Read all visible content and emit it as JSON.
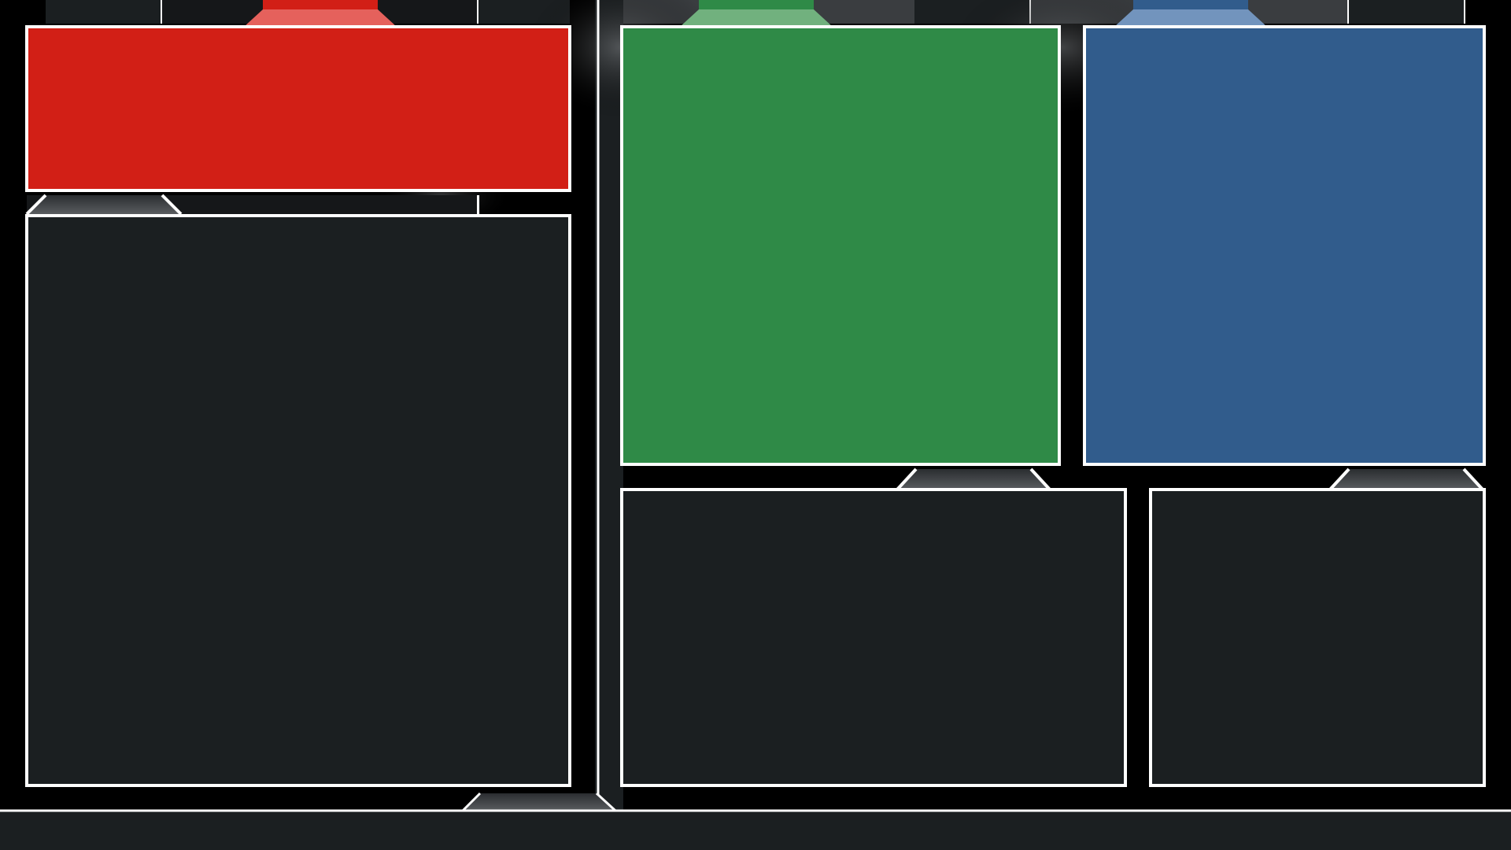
{
  "overlay": {
    "title": "",
    "colors": {
      "background": "#000000",
      "dark_panel": "#1b1f21",
      "border": "#ffffff",
      "red": "#d21f16",
      "red_tab": "#e5615c",
      "green": "#2f8a47",
      "green_tab": "#71b17e",
      "blue": "#315c8c",
      "blue_tab": "#7294bd",
      "grey_tab": "#4a4d50"
    },
    "panels": {
      "red_box": {
        "label": ""
      },
      "left_large": {
        "label": ""
      },
      "green_box": {
        "label": ""
      },
      "blue_box": {
        "label": ""
      },
      "bottom_center": {
        "label": ""
      },
      "bottom_right": {
        "label": ""
      }
    },
    "bottom_bar": {
      "label": ""
    }
  }
}
